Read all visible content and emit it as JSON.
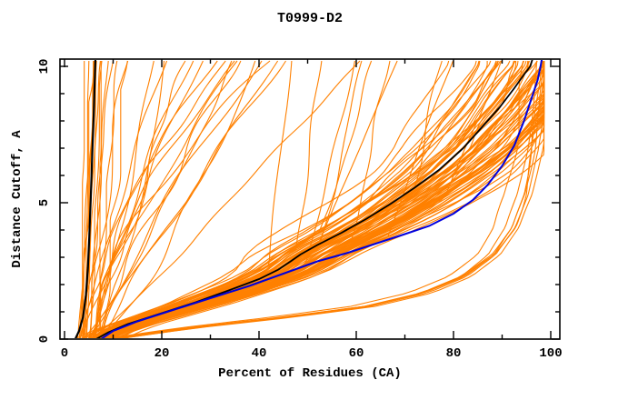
{
  "window": {
    "background": "#ffffff"
  },
  "chart_data": {
    "type": "line",
    "title": "T0999-D2",
    "xlabel": "Percent of Residues (CA)",
    "ylabel": "Distance Cutoff, A",
    "xlim": [
      0,
      100
    ],
    "ylim": [
      0,
      10
    ],
    "grid": false,
    "legend": "none",
    "frame_color": "#000000",
    "x_major_ticks": [
      0,
      20,
      40,
      60,
      80,
      100
    ],
    "x_minor_ticks": [
      10,
      30,
      50,
      70,
      90
    ],
    "y_major_ticks": [
      0,
      5,
      10
    ],
    "y_minor_ticks": [
      1,
      2,
      3,
      4,
      6,
      7,
      8,
      9
    ],
    "series": [
      {
        "name": "steep-left-reference-curve",
        "color": "#000000",
        "width": 2.2,
        "points": [
          [
            2.2,
            0
          ],
          [
            3.0,
            0.3
          ],
          [
            3.8,
            0.8
          ],
          [
            4.4,
            1.6
          ],
          [
            4.8,
            2.6
          ],
          [
            5.1,
            3.8
          ],
          [
            5.4,
            5.2
          ],
          [
            5.7,
            6.8
          ],
          [
            6.0,
            8.2
          ],
          [
            6.2,
            9.4
          ],
          [
            6.35,
            10.3
          ]
        ]
      },
      {
        "name": "black-model-curve",
        "color": "#000000",
        "width": 1.8,
        "points": [
          [
            6.5,
            0
          ],
          [
            9,
            0.25
          ],
          [
            13,
            0.55
          ],
          [
            20,
            0.95
          ],
          [
            27,
            1.35
          ],
          [
            34,
            1.8
          ],
          [
            40,
            2.2
          ],
          [
            44,
            2.55
          ],
          [
            46.5,
            2.85
          ],
          [
            48.5,
            3.1
          ],
          [
            52,
            3.45
          ],
          [
            57,
            3.9
          ],
          [
            62,
            4.4
          ],
          [
            67,
            4.95
          ],
          [
            72,
            5.55
          ],
          [
            77,
            6.2
          ],
          [
            82,
            7.0
          ],
          [
            86,
            7.8
          ],
          [
            89.5,
            8.5
          ],
          [
            92.5,
            9.2
          ],
          [
            94.5,
            9.7
          ],
          [
            95.8,
            10.0
          ],
          [
            96.3,
            10.3
          ]
        ]
      },
      {
        "name": "blue-model-curve",
        "color": "#0000dd",
        "width": 2.0,
        "points": [
          [
            7.5,
            0
          ],
          [
            10,
            0.3
          ],
          [
            15,
            0.65
          ],
          [
            22,
            1.05
          ],
          [
            30,
            1.5
          ],
          [
            38,
            1.95
          ],
          [
            45,
            2.4
          ],
          [
            52,
            2.85
          ],
          [
            58,
            3.15
          ],
          [
            64,
            3.5
          ],
          [
            70,
            3.85
          ],
          [
            75,
            4.15
          ],
          [
            80,
            4.6
          ],
          [
            84,
            5.1
          ],
          [
            87,
            5.65
          ],
          [
            90,
            6.35
          ],
          [
            92.5,
            7.1
          ],
          [
            94.5,
            8.0
          ],
          [
            96,
            8.8
          ],
          [
            97.3,
            9.5
          ],
          [
            97.9,
            10.0
          ],
          [
            98.2,
            10.3
          ]
        ]
      }
    ],
    "ensemble": {
      "name": "server-model-curves",
      "color": "#ff8000",
      "width": 1.1,
      "seed": 42,
      "y_max": 10.3,
      "y_step": 0.15,
      "x_clamp": [
        1.8,
        98.6
      ],
      "base_bundle": [
        [
          6.5,
          0
        ],
        [
          9,
          0.25
        ],
        [
          13,
          0.55
        ],
        [
          20,
          0.95
        ],
        [
          27,
          1.35
        ],
        [
          34,
          1.8
        ],
        [
          40,
          2.2
        ],
        [
          44,
          2.55
        ],
        [
          46.5,
          2.85
        ],
        [
          48.5,
          3.1
        ],
        [
          52,
          3.45
        ],
        [
          57,
          3.9
        ],
        [
          62,
          4.4
        ],
        [
          67,
          4.95
        ],
        [
          72,
          5.55
        ],
        [
          77,
          6.2
        ],
        [
          82,
          7.0
        ],
        [
          86,
          7.8
        ],
        [
          89.5,
          8.5
        ],
        [
          92.5,
          9.2
        ],
        [
          94.5,
          9.7
        ],
        [
          95.8,
          10.0
        ],
        [
          96.3,
          10.3
        ]
      ],
      "base_good": [
        [
          9,
          0
        ],
        [
          25,
          0.4
        ],
        [
          45,
          0.8
        ],
        [
          62,
          1.2
        ],
        [
          74,
          1.7
        ],
        [
          82,
          2.3
        ],
        [
          88,
          3.1
        ],
        [
          92,
          4.1
        ],
        [
          94.5,
          5.3
        ],
        [
          96.3,
          6.9
        ],
        [
          97.5,
          8.5
        ],
        [
          98.3,
          10.3
        ]
      ],
      "families": {
        "bundle": {
          "count": 74,
          "scale": [
            0.86,
            1.15
          ],
          "offset": [
            -5,
            7
          ],
          "wiggle": 1.6
        },
        "fan": {
          "count": 24,
          "x0": [
            3,
            8
          ],
          "x_top": [
            5,
            68
          ],
          "power": [
            0.7,
            1.7
          ],
          "wiggle": 1.0
        },
        "mid": {
          "count": 10,
          "break_y": [
            2,
            5.5
          ],
          "slope": [
            0.5,
            2.5
          ]
        },
        "left": {
          "count": 9,
          "x0": [
            2.5,
            5.5
          ],
          "slope": [
            0.05,
            0.4
          ],
          "wiggle": 0.3
        },
        "good": {
          "count": 7,
          "scale": [
            0.97,
            1.02
          ],
          "offset": [
            -2.5,
            2.5
          ],
          "wiggle": 0.6
        }
      }
    }
  }
}
